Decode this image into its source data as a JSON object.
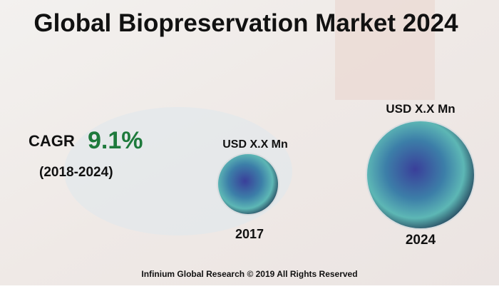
{
  "header": {
    "title": "Global Biopreservation Market 2024"
  },
  "cagr": {
    "label": "CAGR",
    "value": "9.1%",
    "period": "(2018-2024)"
  },
  "markets": [
    {
      "label": "USD X.X Mn",
      "year": "2017"
    },
    {
      "label": "USD X.X Mn",
      "year": "2024"
    }
  ],
  "footer": {
    "text": "Infinium Global Research © 2019 All Rights Reserved"
  }
}
